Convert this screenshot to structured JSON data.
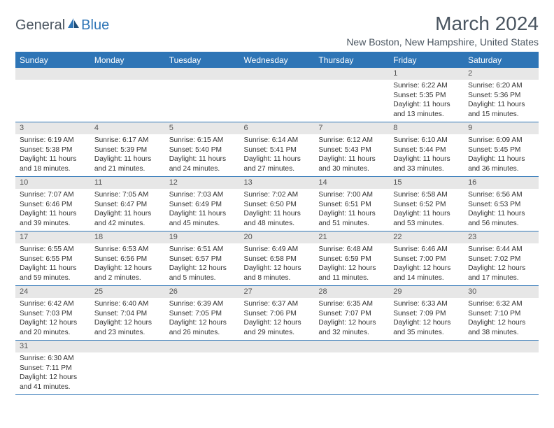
{
  "logo": {
    "text1": "General",
    "text2": "Blue",
    "color1": "#4a5560",
    "color2": "#2e75b6"
  },
  "title": "March 2024",
  "subtitle": "New Boston, New Hampshire, United States",
  "accent_color": "#2e75b6",
  "header_bg": "#2e75b6",
  "header_fg": "#ffffff",
  "daynum_bg": "#e7e7e7",
  "weekdays": [
    "Sunday",
    "Monday",
    "Tuesday",
    "Wednesday",
    "Thursday",
    "Friday",
    "Saturday"
  ],
  "weeks": [
    [
      null,
      null,
      null,
      null,
      null,
      {
        "n": "1",
        "sunrise": "Sunrise: 6:22 AM",
        "sunset": "Sunset: 5:35 PM",
        "daylight": "Daylight: 11 hours and 13 minutes."
      },
      {
        "n": "2",
        "sunrise": "Sunrise: 6:20 AM",
        "sunset": "Sunset: 5:36 PM",
        "daylight": "Daylight: 11 hours and 15 minutes."
      }
    ],
    [
      {
        "n": "3",
        "sunrise": "Sunrise: 6:19 AM",
        "sunset": "Sunset: 5:38 PM",
        "daylight": "Daylight: 11 hours and 18 minutes."
      },
      {
        "n": "4",
        "sunrise": "Sunrise: 6:17 AM",
        "sunset": "Sunset: 5:39 PM",
        "daylight": "Daylight: 11 hours and 21 minutes."
      },
      {
        "n": "5",
        "sunrise": "Sunrise: 6:15 AM",
        "sunset": "Sunset: 5:40 PM",
        "daylight": "Daylight: 11 hours and 24 minutes."
      },
      {
        "n": "6",
        "sunrise": "Sunrise: 6:14 AM",
        "sunset": "Sunset: 5:41 PM",
        "daylight": "Daylight: 11 hours and 27 minutes."
      },
      {
        "n": "7",
        "sunrise": "Sunrise: 6:12 AM",
        "sunset": "Sunset: 5:43 PM",
        "daylight": "Daylight: 11 hours and 30 minutes."
      },
      {
        "n": "8",
        "sunrise": "Sunrise: 6:10 AM",
        "sunset": "Sunset: 5:44 PM",
        "daylight": "Daylight: 11 hours and 33 minutes."
      },
      {
        "n": "9",
        "sunrise": "Sunrise: 6:09 AM",
        "sunset": "Sunset: 5:45 PM",
        "daylight": "Daylight: 11 hours and 36 minutes."
      }
    ],
    [
      {
        "n": "10",
        "sunrise": "Sunrise: 7:07 AM",
        "sunset": "Sunset: 6:46 PM",
        "daylight": "Daylight: 11 hours and 39 minutes."
      },
      {
        "n": "11",
        "sunrise": "Sunrise: 7:05 AM",
        "sunset": "Sunset: 6:47 PM",
        "daylight": "Daylight: 11 hours and 42 minutes."
      },
      {
        "n": "12",
        "sunrise": "Sunrise: 7:03 AM",
        "sunset": "Sunset: 6:49 PM",
        "daylight": "Daylight: 11 hours and 45 minutes."
      },
      {
        "n": "13",
        "sunrise": "Sunrise: 7:02 AM",
        "sunset": "Sunset: 6:50 PM",
        "daylight": "Daylight: 11 hours and 48 minutes."
      },
      {
        "n": "14",
        "sunrise": "Sunrise: 7:00 AM",
        "sunset": "Sunset: 6:51 PM",
        "daylight": "Daylight: 11 hours and 51 minutes."
      },
      {
        "n": "15",
        "sunrise": "Sunrise: 6:58 AM",
        "sunset": "Sunset: 6:52 PM",
        "daylight": "Daylight: 11 hours and 53 minutes."
      },
      {
        "n": "16",
        "sunrise": "Sunrise: 6:56 AM",
        "sunset": "Sunset: 6:53 PM",
        "daylight": "Daylight: 11 hours and 56 minutes."
      }
    ],
    [
      {
        "n": "17",
        "sunrise": "Sunrise: 6:55 AM",
        "sunset": "Sunset: 6:55 PM",
        "daylight": "Daylight: 11 hours and 59 minutes."
      },
      {
        "n": "18",
        "sunrise": "Sunrise: 6:53 AM",
        "sunset": "Sunset: 6:56 PM",
        "daylight": "Daylight: 12 hours and 2 minutes."
      },
      {
        "n": "19",
        "sunrise": "Sunrise: 6:51 AM",
        "sunset": "Sunset: 6:57 PM",
        "daylight": "Daylight: 12 hours and 5 minutes."
      },
      {
        "n": "20",
        "sunrise": "Sunrise: 6:49 AM",
        "sunset": "Sunset: 6:58 PM",
        "daylight": "Daylight: 12 hours and 8 minutes."
      },
      {
        "n": "21",
        "sunrise": "Sunrise: 6:48 AM",
        "sunset": "Sunset: 6:59 PM",
        "daylight": "Daylight: 12 hours and 11 minutes."
      },
      {
        "n": "22",
        "sunrise": "Sunrise: 6:46 AM",
        "sunset": "Sunset: 7:00 PM",
        "daylight": "Daylight: 12 hours and 14 minutes."
      },
      {
        "n": "23",
        "sunrise": "Sunrise: 6:44 AM",
        "sunset": "Sunset: 7:02 PM",
        "daylight": "Daylight: 12 hours and 17 minutes."
      }
    ],
    [
      {
        "n": "24",
        "sunrise": "Sunrise: 6:42 AM",
        "sunset": "Sunset: 7:03 PM",
        "daylight": "Daylight: 12 hours and 20 minutes."
      },
      {
        "n": "25",
        "sunrise": "Sunrise: 6:40 AM",
        "sunset": "Sunset: 7:04 PM",
        "daylight": "Daylight: 12 hours and 23 minutes."
      },
      {
        "n": "26",
        "sunrise": "Sunrise: 6:39 AM",
        "sunset": "Sunset: 7:05 PM",
        "daylight": "Daylight: 12 hours and 26 minutes."
      },
      {
        "n": "27",
        "sunrise": "Sunrise: 6:37 AM",
        "sunset": "Sunset: 7:06 PM",
        "daylight": "Daylight: 12 hours and 29 minutes."
      },
      {
        "n": "28",
        "sunrise": "Sunrise: 6:35 AM",
        "sunset": "Sunset: 7:07 PM",
        "daylight": "Daylight: 12 hours and 32 minutes."
      },
      {
        "n": "29",
        "sunrise": "Sunrise: 6:33 AM",
        "sunset": "Sunset: 7:09 PM",
        "daylight": "Daylight: 12 hours and 35 minutes."
      },
      {
        "n": "30",
        "sunrise": "Sunrise: 6:32 AM",
        "sunset": "Sunset: 7:10 PM",
        "daylight": "Daylight: 12 hours and 38 minutes."
      }
    ],
    [
      {
        "n": "31",
        "sunrise": "Sunrise: 6:30 AM",
        "sunset": "Sunset: 7:11 PM",
        "daylight": "Daylight: 12 hours and 41 minutes."
      },
      null,
      null,
      null,
      null,
      null,
      null
    ]
  ]
}
